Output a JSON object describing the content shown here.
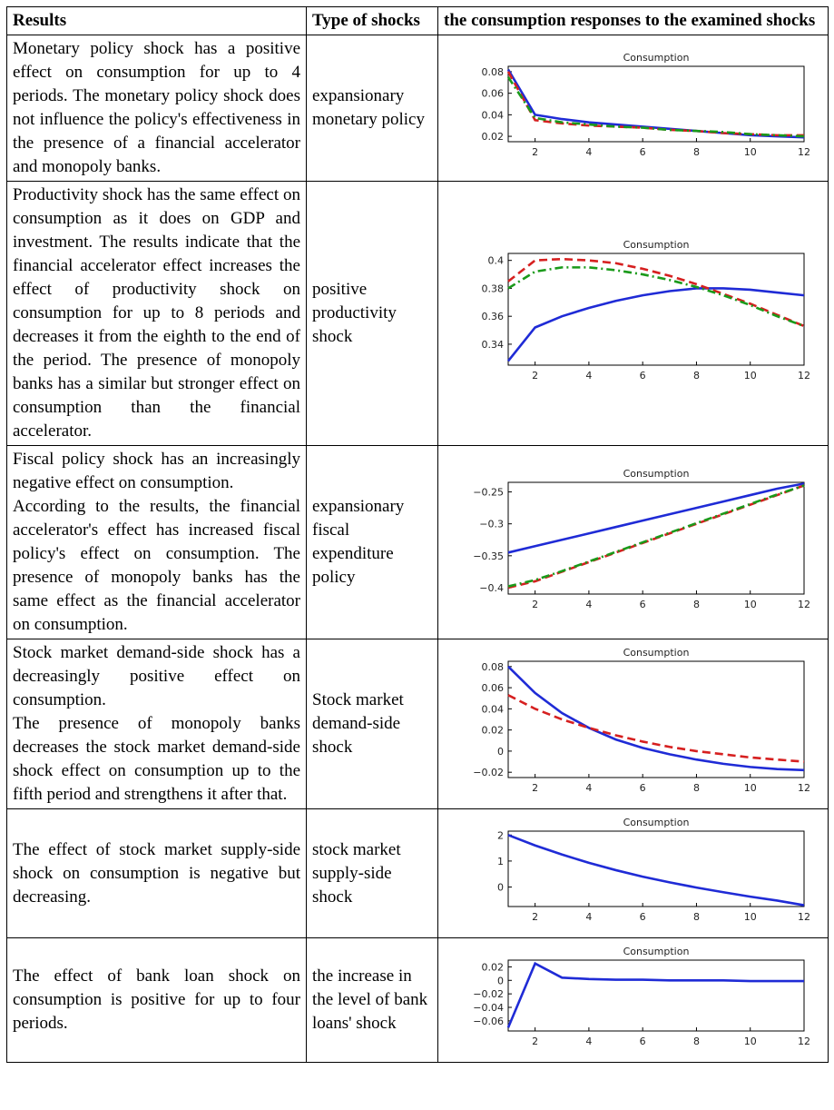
{
  "table": {
    "headers": [
      "Results",
      "Type of shocks",
      "the consumption responses to the examined shocks"
    ],
    "rows": [
      {
        "result": [
          "Monetary policy shock has a positive effect on consumption for up to 4 periods. The monetary policy shock does not influence the policy's effectiveness in the presence of a financial accelerator and monopoly banks."
        ],
        "shock": "expansionary monetary policy",
        "chart": {
          "type": "line",
          "title": "Consumption",
          "x": [
            1,
            2,
            3,
            4,
            5,
            6,
            7,
            8,
            9,
            10,
            11,
            12
          ],
          "xlim": [
            1,
            12
          ],
          "xticks": [
            2,
            4,
            6,
            8,
            10,
            12
          ],
          "ylim": [
            0.015,
            0.085
          ],
          "yticks": [
            0.02,
            0.04,
            0.06,
            0.08
          ],
          "series": [
            {
              "color": "#1f2bd6",
              "style": "solid",
              "values": [
                0.082,
                0.04,
                0.036,
                0.033,
                0.031,
                0.029,
                0.027,
                0.025,
                0.023,
                0.021,
                0.02,
                0.019
              ]
            },
            {
              "color": "#d62020",
              "style": "dashed",
              "values": [
                0.08,
                0.035,
                0.032,
                0.03,
                0.029,
                0.028,
                0.026,
                0.025,
                0.023,
                0.022,
                0.021,
                0.021
              ]
            },
            {
              "color": "#1a9a1a",
              "style": "dashdot",
              "values": [
                0.075,
                0.037,
                0.033,
                0.031,
                0.029,
                0.028,
                0.026,
                0.025,
                0.024,
                0.022,
                0.021,
                0.02
              ]
            }
          ]
        }
      },
      {
        "result": [
          "Productivity shock has the same effect on consumption as it does on GDP and investment. The results indicate that the financial accelerator effect increases the effect of productivity shock on consumption for up to 8 periods and decreases it from the eighth to the end of the period. The presence of monopoly banks has a similar but stronger effect on consumption than the financial accelerator."
        ],
        "shock": "positive productivity shock",
        "chart": {
          "type": "line",
          "title": "Consumption",
          "x": [
            1,
            2,
            3,
            4,
            5,
            6,
            7,
            8,
            9,
            10,
            11,
            12
          ],
          "xlim": [
            1,
            12
          ],
          "xticks": [
            2,
            4,
            6,
            8,
            10,
            12
          ],
          "ylim": [
            0.325,
            0.405
          ],
          "yticks": [
            0.34,
            0.36,
            0.38,
            0.4
          ],
          "series": [
            {
              "color": "#1f2bd6",
              "style": "solid",
              "values": [
                0.328,
                0.352,
                0.36,
                0.366,
                0.371,
                0.375,
                0.378,
                0.38,
                0.38,
                0.379,
                0.377,
                0.375
              ]
            },
            {
              "color": "#d62020",
              "style": "dashed",
              "values": [
                0.385,
                0.4,
                0.401,
                0.4,
                0.398,
                0.394,
                0.389,
                0.383,
                0.376,
                0.369,
                0.361,
                0.353
              ]
            },
            {
              "color": "#1a9a1a",
              "style": "dashdot",
              "values": [
                0.38,
                0.392,
                0.395,
                0.395,
                0.393,
                0.39,
                0.386,
                0.381,
                0.375,
                0.368,
                0.36,
                0.353
              ]
            }
          ]
        }
      },
      {
        "result": [
          "Fiscal policy shock has an increasingly negative effect on consumption.",
          "According to the results, the financial accelerator's effect has increased fiscal policy's effect on consumption. The presence of monopoly banks has the same effect as the financial accelerator on consumption."
        ],
        "shock": "expansionary fiscal expenditure policy",
        "chart": {
          "type": "line",
          "title": "Consumption",
          "x": [
            1,
            2,
            3,
            4,
            5,
            6,
            7,
            8,
            9,
            10,
            11,
            12
          ],
          "xlim": [
            1,
            12
          ],
          "xticks": [
            2,
            4,
            6,
            8,
            10,
            12
          ],
          "ylim": [
            -0.41,
            -0.235
          ],
          "yticks": [
            {
              "value": -0.25,
              "label": "−0.25"
            },
            {
              "value": -0.3,
              "label": "−0.3"
            },
            {
              "value": -0.35,
              "label": "−0.35"
            },
            {
              "value": -0.4,
              "label": "−0.4"
            }
          ],
          "series": [
            {
              "color": "#1f2bd6",
              "style": "solid",
              "values": [
                -0.345,
                -0.335,
                -0.325,
                -0.315,
                -0.305,
                -0.295,
                -0.285,
                -0.275,
                -0.265,
                -0.255,
                -0.245,
                -0.237
              ]
            },
            {
              "color": "#d62020",
              "style": "dashed",
              "values": [
                -0.4,
                -0.39,
                -0.375,
                -0.36,
                -0.345,
                -0.33,
                -0.315,
                -0.3,
                -0.285,
                -0.27,
                -0.255,
                -0.24
              ]
            },
            {
              "color": "#1a9a1a",
              "style": "dashdot",
              "values": [
                -0.398,
                -0.388,
                -0.374,
                -0.359,
                -0.344,
                -0.329,
                -0.314,
                -0.299,
                -0.284,
                -0.269,
                -0.254,
                -0.24
              ]
            }
          ]
        }
      },
      {
        "result": [
          "Stock market demand-side shock has a decreasingly positive effect on consumption.",
          "The presence of monopoly banks decreases the stock market demand-side shock effect on consumption up to the fifth period and strengthens it after that."
        ],
        "shock": "Stock market demand-side shock",
        "chart": {
          "type": "line",
          "title": "Consumption",
          "x": [
            1,
            2,
            3,
            4,
            5,
            6,
            7,
            8,
            9,
            10,
            11,
            12
          ],
          "xlim": [
            1,
            12
          ],
          "xticks": [
            2,
            4,
            6,
            8,
            10,
            12
          ],
          "ylim": [
            -0.025,
            0.085
          ],
          "yticks": [
            0.08,
            0.06,
            0.04,
            0.02,
            0,
            {
              "value": -0.02,
              "label": "−0.02"
            }
          ],
          "series": [
            {
              "color": "#1f2bd6",
              "style": "solid",
              "values": [
                0.08,
                0.055,
                0.036,
                0.022,
                0.011,
                0.003,
                -0.003,
                -0.008,
                -0.012,
                -0.015,
                -0.017,
                -0.018
              ]
            },
            {
              "color": "#d62020",
              "style": "dashed",
              "values": [
                0.053,
                0.04,
                0.03,
                0.022,
                0.015,
                0.009,
                0.004,
                0,
                -0.003,
                -0.006,
                -0.008,
                -0.01
              ]
            }
          ]
        }
      },
      {
        "result": [
          "The effect of stock market supply-side shock on consumption is negative but decreasing."
        ],
        "shock": "stock market supply-side shock",
        "chart": {
          "type": "line",
          "title": "Consumption",
          "x": [
            1,
            2,
            3,
            4,
            5,
            6,
            7,
            8,
            9,
            10,
            11,
            12
          ],
          "xlim": [
            1,
            12
          ],
          "xticks": [
            2,
            4,
            6,
            8,
            10,
            12
          ],
          "ylim": [
            -0.75,
            2.15
          ],
          "yticks": [
            0,
            1,
            2
          ],
          "series": [
            {
              "color": "#1f2bd6",
              "style": "solid",
              "values": [
                2,
                1.6,
                1.25,
                0.93,
                0.65,
                0.4,
                0.18,
                -0.02,
                -0.2,
                -0.37,
                -0.52,
                -0.7
              ]
            }
          ]
        }
      },
      {
        "result": [
          "The effect of bank loan shock on consumption is positive for up to four periods."
        ],
        "shock": "the increase in the level of bank loans' shock",
        "chart": {
          "type": "line",
          "title": "Consumption",
          "x": [
            1,
            2,
            3,
            4,
            5,
            6,
            7,
            8,
            9,
            10,
            11,
            12
          ],
          "xlim": [
            1,
            12
          ],
          "xticks": [
            2,
            4,
            6,
            8,
            10,
            12
          ],
          "ylim": [
            -0.075,
            0.03
          ],
          "yticks": [
            0.02,
            0,
            {
              "value": -0.02,
              "label": "−0.02"
            },
            {
              "value": -0.04,
              "label": "−0.04"
            },
            {
              "value": -0.06,
              "label": "−0.06"
            }
          ],
          "series": [
            {
              "color": "#1f2bd6",
              "style": "solid",
              "values": [
                -0.07,
                0.025,
                0.004,
                0.002,
                0.001,
                0.001,
                0,
                0,
                0,
                -0.001,
                -0.001,
                -0.001
              ]
            }
          ]
        }
      }
    ]
  }
}
